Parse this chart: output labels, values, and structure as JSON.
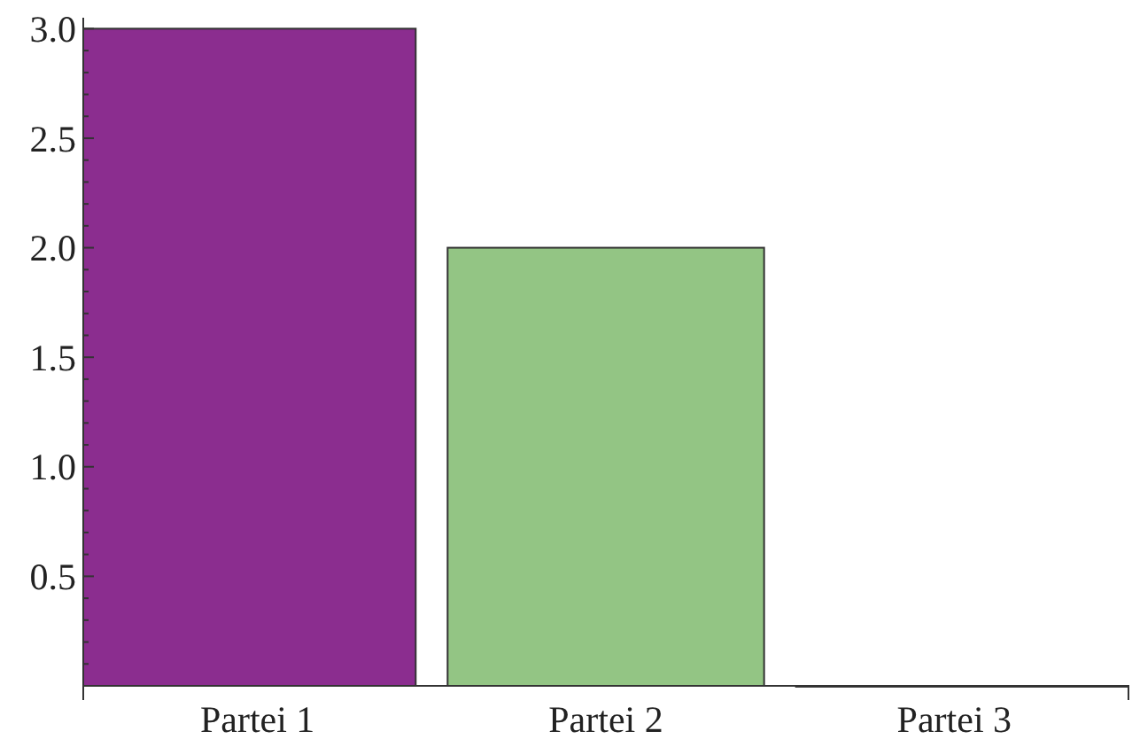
{
  "chart_data": {
    "type": "bar",
    "categories": [
      "Partei 1",
      "Partei 2",
      "Partei 3"
    ],
    "values": [
      3,
      2,
      0
    ],
    "colors": [
      "#8b2d8f",
      "#93c584",
      "#5e81b5"
    ],
    "ylim": [
      0,
      3.05
    ],
    "yticks": [
      {
        "value": 0.1,
        "label": null
      },
      {
        "value": 0.2,
        "label": null
      },
      {
        "value": 0.3,
        "label": null
      },
      {
        "value": 0.4,
        "label": null
      },
      {
        "value": 0.5,
        "label": "0.5"
      },
      {
        "value": 0.6,
        "label": null
      },
      {
        "value": 0.7,
        "label": null
      },
      {
        "value": 0.8,
        "label": null
      },
      {
        "value": 0.9,
        "label": null
      },
      {
        "value": 1,
        "label": "1.0"
      },
      {
        "value": 1.1,
        "label": null
      },
      {
        "value": 1.2,
        "label": null
      },
      {
        "value": 1.3,
        "label": null
      },
      {
        "value": 1.4,
        "label": null
      },
      {
        "value": 1.5,
        "label": "1.5"
      },
      {
        "value": 1.6,
        "label": null
      },
      {
        "value": 1.7,
        "label": null
      },
      {
        "value": 1.8,
        "label": null
      },
      {
        "value": 1.9,
        "label": null
      },
      {
        "value": 2,
        "label": "2.0"
      },
      {
        "value": 2.1,
        "label": null
      },
      {
        "value": 2.2,
        "label": null
      },
      {
        "value": 2.3,
        "label": null
      },
      {
        "value": 2.4,
        "label": null
      },
      {
        "value": 2.5,
        "label": "2.5"
      },
      {
        "value": 2.6,
        "label": null
      },
      {
        "value": 2.7,
        "label": null
      },
      {
        "value": 2.8,
        "label": null
      },
      {
        "value": 2.9,
        "label": null
      },
      {
        "value": 3,
        "label": "3.0"
      }
    ],
    "grid": false
  }
}
